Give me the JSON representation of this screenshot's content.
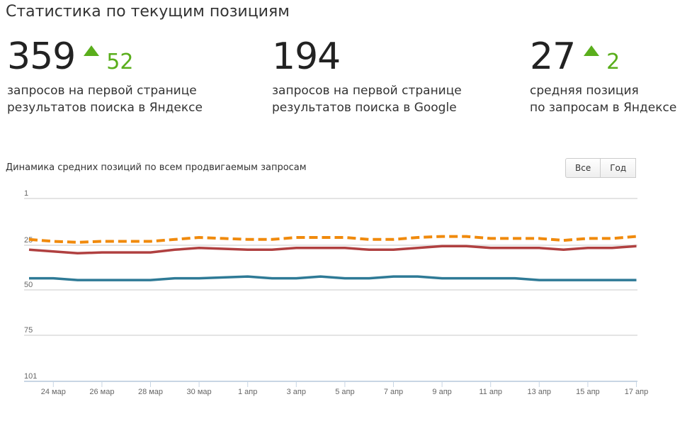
{
  "title": "Статистика по текущим позициям",
  "stats": [
    {
      "value": "359",
      "delta": "52",
      "trend": "up",
      "line1": "запросов на первой странице",
      "line2": "результатов поиска в Яндексе"
    },
    {
      "value": "194",
      "delta": "",
      "trend": "none",
      "line1": "запросов на первой странице",
      "line2": "результатов поиска в Google"
    },
    {
      "value": "27",
      "delta": "2",
      "trend": "up",
      "line1": "средняя позиция",
      "line2": "по запросам в Яндексе"
    }
  ],
  "range_buttons": [
    "Все",
    "Год"
  ],
  "chart_data": {
    "type": "line",
    "title": "Динамика средних позиций по всем продвигаемым запросам",
    "y_reversed": true,
    "ylim": [
      1,
      101
    ],
    "yticks": [
      1,
      25,
      50,
      75,
      101
    ],
    "grid": true,
    "xtick_labels": [
      "24 мар",
      "26 мар",
      "28 мар",
      "30 мар",
      "1 апр",
      "3 апр",
      "5 апр",
      "7 апр",
      "9 апр",
      "11 апр",
      "13 апр",
      "15 апр",
      "17 апр"
    ],
    "x": [
      "23 мар",
      "24 мар",
      "25 мар",
      "26 мар",
      "27 мар",
      "28 мар",
      "29 мар",
      "30 мар",
      "31 мар",
      "1 апр",
      "2 апр",
      "3 апр",
      "4 апр",
      "5 апр",
      "6 апр",
      "7 апр",
      "8 апр",
      "9 апр",
      "10 апр",
      "11 апр",
      "12 апр",
      "13 апр",
      "14 апр",
      "15 апр",
      "16 апр",
      "17 апр"
    ],
    "series": [
      {
        "color": "#f08a0c",
        "style": "dashed",
        "values": [
          22,
          23,
          23.5,
          23,
          23,
          23,
          22,
          21,
          21.5,
          22,
          22,
          21,
          21,
          21,
          22,
          22,
          21,
          20.5,
          20.5,
          21.5,
          21.5,
          21.5,
          22.5,
          21.5,
          21.5,
          20.5
        ]
      },
      {
        "color": "#b04040",
        "style": "solid",
        "values": [
          27.5,
          28.5,
          29.5,
          29,
          29,
          29,
          27.5,
          26.5,
          27,
          27.5,
          27.5,
          26.5,
          26.5,
          26.5,
          27.5,
          27.5,
          26.5,
          25.5,
          25.5,
          26.5,
          26.5,
          26.5,
          27.5,
          26.5,
          26.5,
          25.5
        ]
      },
      {
        "color": "#2e7a96",
        "style": "solid",
        "values": [
          43.5,
          43.5,
          44.5,
          44.5,
          44.5,
          44.5,
          43.5,
          43.5,
          43,
          42.5,
          43.5,
          43.5,
          42.5,
          43.5,
          43.5,
          42.5,
          42.5,
          43.5,
          43.5,
          43.5,
          43.5,
          44.5,
          44.5,
          44.5,
          44.5,
          44.5
        ]
      }
    ]
  }
}
